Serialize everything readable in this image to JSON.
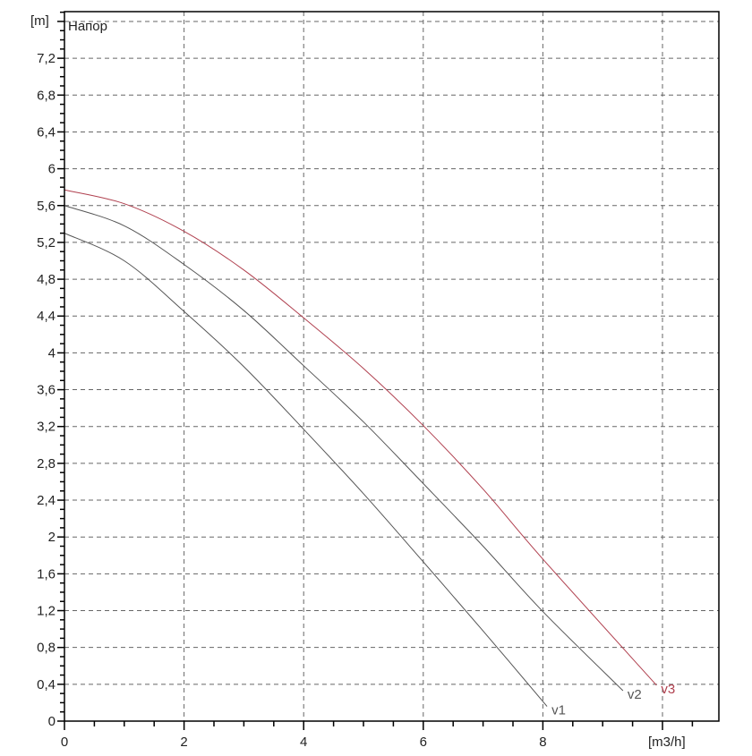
{
  "chart_data": {
    "type": "line",
    "title": "Напор",
    "xlabel": "[m3/h]",
    "ylabel": "[m]",
    "xlim": [
      0,
      11
    ],
    "ylim": [
      0,
      7.7
    ],
    "x_ticks": [
      "0",
      "2",
      "4",
      "6",
      "8"
    ],
    "x_tick_values": [
      0,
      2,
      4,
      6,
      8
    ],
    "y_ticks": [
      "0",
      "0,4",
      "0,8",
      "1,2",
      "1,6",
      "2",
      "2,4",
      "2,8",
      "3,2",
      "3,6",
      "4",
      "4,4",
      "4,8",
      "5,2",
      "5,6",
      "6",
      "6,4",
      "6,8",
      "7,2"
    ],
    "y_tick_values": [
      0,
      0.4,
      0.8,
      1.2,
      1.6,
      2,
      2.4,
      2.8,
      3.2,
      3.6,
      4,
      4.4,
      4.8,
      5.2,
      5.6,
      6,
      6.4,
      6.8,
      7.2
    ],
    "grid": true,
    "series": [
      {
        "name": "v1",
        "color": "#555555",
        "x": [
          0,
          1,
          2,
          3,
          4,
          5,
          6,
          7,
          8.07
        ],
        "y": [
          5.3,
          5.0,
          4.45,
          3.85,
          3.17,
          2.47,
          1.73,
          0.98,
          0.16
        ]
      },
      {
        "name": "v2",
        "color": "#555555",
        "x": [
          0,
          1,
          2,
          3,
          4,
          5,
          6,
          7,
          8,
          9.34
        ],
        "y": [
          5.6,
          5.38,
          4.96,
          4.46,
          3.86,
          3.25,
          2.58,
          1.9,
          1.19,
          0.33
        ]
      },
      {
        "name": "v3",
        "color": "#b0404f",
        "x": [
          0,
          1,
          2,
          3,
          4,
          5,
          6,
          7,
          8,
          9.9
        ],
        "y": [
          5.77,
          5.62,
          5.32,
          4.9,
          4.38,
          3.83,
          3.21,
          2.52,
          1.76,
          0.39
        ]
      }
    ]
  }
}
